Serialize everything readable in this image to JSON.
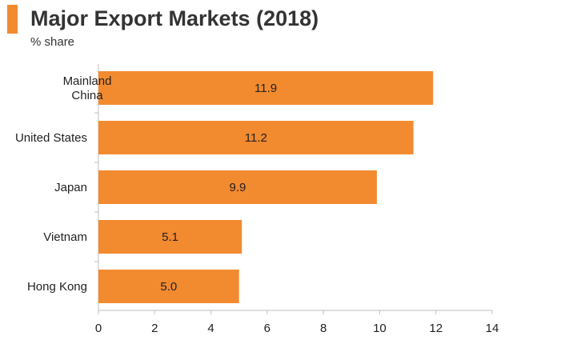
{
  "chart_data": {
    "type": "bar",
    "orientation": "horizontal",
    "title": "Major Export Markets (2018)",
    "subtitle": "% share",
    "categories": [
      [
        "Mainland",
        "China"
      ],
      [
        "United States"
      ],
      [
        "Japan"
      ],
      [
        "Vietnam"
      ],
      [
        "Hong Kong"
      ]
    ],
    "values": [
      11.9,
      11.2,
      9.9,
      5.1,
      5.0
    ],
    "value_labels": [
      "11.9",
      "11.2",
      "9.9",
      "5.1",
      "5.0"
    ],
    "xlim": [
      0,
      14
    ],
    "xticks": [
      0,
      2,
      4,
      6,
      8,
      10,
      12,
      14
    ],
    "grid": false,
    "colors": {
      "bar": "#f28a30",
      "accent": "#f28a30",
      "axis": "#bfbfbf",
      "text": "#222222"
    }
  }
}
